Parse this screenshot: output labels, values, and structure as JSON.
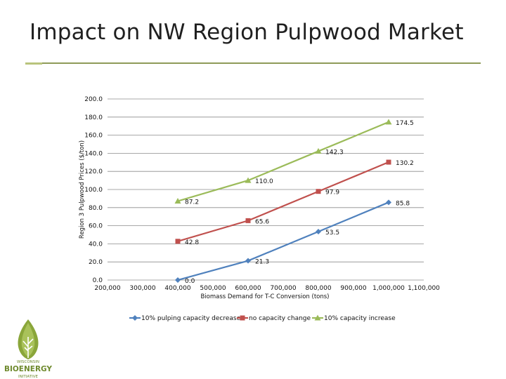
{
  "title": "Impact on NW Region Pulpwood Market",
  "colors": {
    "accent_rule": "#8e9a58",
    "logo_green": "#6f8a2e"
  },
  "logo": {
    "top_text": "WISCONSIN",
    "main_text": "BIOENERGY",
    "bottom_text": "INITIATIVE",
    "icon": "leaf-tree-icon"
  },
  "chart_data": {
    "type": "line",
    "title": "",
    "xlabel": "Biomass Demand for T-C Conversion (tons)",
    "ylabel": "Region 3 Pulpwood Prices ($/ton)",
    "xlim": [
      200000,
      1100000
    ],
    "ylim": [
      0,
      200
    ],
    "x_ticks": [
      200000,
      300000,
      400000,
      500000,
      600000,
      700000,
      800000,
      900000,
      1000000,
      1100000
    ],
    "x_tick_labels": [
      "200,000",
      "300,000",
      "400,000",
      "500,000",
      "600,000",
      "700,000",
      "800,000",
      "900,000",
      "1,000,000",
      "1,100,000"
    ],
    "y_ticks": [
      0,
      20,
      40,
      60,
      80,
      100,
      120,
      140,
      160,
      180,
      200
    ],
    "y_tick_labels": [
      "0.0",
      "20.0",
      "40.0",
      "60.0",
      "80.0",
      "100.0",
      "120.0",
      "140.0",
      "160.0",
      "180.0",
      "200.0"
    ],
    "grid": true,
    "legend_position": "bottom",
    "series": [
      {
        "name": "10% pulping capacity decrease",
        "color": "#4f81bd",
        "marker": "diamond",
        "x": [
          400000,
          600000,
          800000,
          1000000
        ],
        "y": [
          0.0,
          21.3,
          53.5,
          85.8
        ],
        "labels": [
          "0.0",
          "21.3",
          "53.5",
          "85.8"
        ]
      },
      {
        "name": "no capacity change",
        "color": "#c0504d",
        "marker": "square",
        "x": [
          400000,
          600000,
          800000,
          1000000
        ],
        "y": [
          42.8,
          65.6,
          97.9,
          130.2
        ],
        "labels": [
          "42.8",
          "65.6",
          "97.9",
          "130.2"
        ]
      },
      {
        "name": "10% capacity increase",
        "color": "#9bbb59",
        "marker": "triangle",
        "x": [
          400000,
          600000,
          800000,
          1000000
        ],
        "y": [
          87.2,
          110.0,
          142.3,
          174.5
        ],
        "labels": [
          "87.2",
          "110.0",
          "142.3",
          "174.5"
        ]
      }
    ]
  }
}
